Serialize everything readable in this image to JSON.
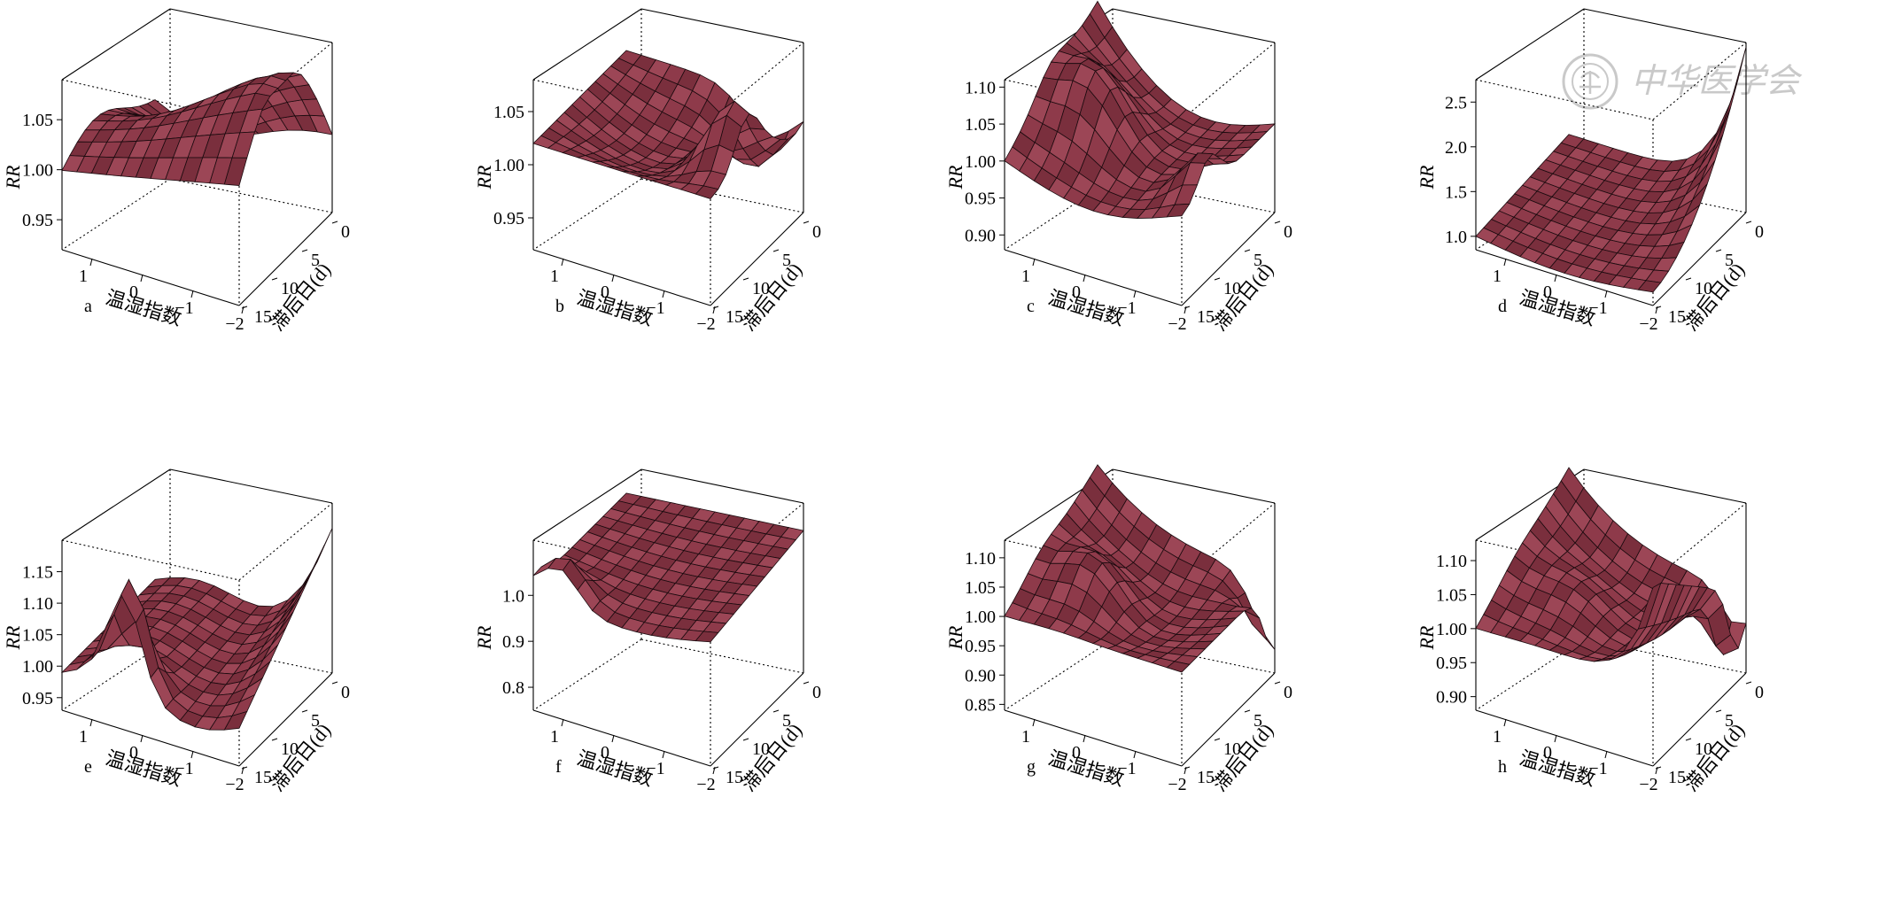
{
  "figure": {
    "watermark": {
      "text": "中华医学会",
      "color": "#c9c9c9"
    },
    "colors": {
      "surface": "#8e3a4a",
      "edge": "#1a0a0e",
      "box": "#000000"
    },
    "x_label": "温湿指数",
    "y_label": "滞后日(d)",
    "z_label": "RR",
    "x_ticks": [
      "1",
      "0",
      "−1",
      "−2"
    ],
    "y_ticks": [
      "0",
      "5",
      "10",
      "15"
    ]
  },
  "chart_data": [
    {
      "type": "surface",
      "label": "a",
      "x_values": [
        1.5,
        -2
      ],
      "lag_range": [
        0,
        15
      ],
      "zlabel": "RR",
      "zlim": [
        0.92,
        1.09
      ],
      "z_ticks": [
        "0.95",
        "1.00",
        "1.05"
      ]
    },
    {
      "type": "surface",
      "label": "b",
      "x_values": [
        1.5,
        -2
      ],
      "lag_range": [
        0,
        15
      ],
      "zlabel": "RR",
      "zlim": [
        0.92,
        1.08
      ],
      "z_ticks": [
        "0.95",
        "1.00",
        "1.05"
      ]
    },
    {
      "type": "surface",
      "label": "c",
      "x_values": [
        1.5,
        -2
      ],
      "lag_range": [
        0,
        15
      ],
      "zlabel": "RR",
      "zlim": [
        0.88,
        1.11
      ],
      "z_ticks": [
        "0.90",
        "0.95",
        "1.00",
        "1.05",
        "1.10"
      ]
    },
    {
      "type": "surface",
      "label": "d",
      "x_values": [
        1.5,
        -2
      ],
      "lag_range": [
        0,
        15
      ],
      "zlabel": "RR",
      "zlim": [
        0.85,
        2.75
      ],
      "z_ticks": [
        "1.0",
        "1.5",
        "2.0",
        "2.5"
      ]
    },
    {
      "type": "surface",
      "label": "e",
      "x_values": [
        1.5,
        -2
      ],
      "lag_range": [
        0,
        15
      ],
      "zlabel": "RR",
      "zlim": [
        0.93,
        1.2
      ],
      "z_ticks": [
        "0.95",
        "1.00",
        "1.05",
        "1.10",
        "1.15"
      ]
    },
    {
      "type": "surface",
      "label": "f",
      "x_values": [
        1.5,
        -2
      ],
      "lag_range": [
        0,
        15
      ],
      "zlabel": "RR",
      "zlim": [
        0.75,
        1.12
      ],
      "z_ticks": [
        "0.8",
        "0.9",
        "1.0"
      ]
    },
    {
      "type": "surface",
      "label": "g",
      "x_values": [
        1.5,
        -2
      ],
      "lag_range": [
        0,
        15
      ],
      "zlabel": "RR",
      "zlim": [
        0.84,
        1.13
      ],
      "z_ticks": [
        "0.85",
        "0.90",
        "0.95",
        "1.00",
        "1.05",
        "1.10"
      ]
    },
    {
      "type": "surface",
      "label": "h",
      "x_values": [
        1.5,
        -2
      ],
      "lag_range": [
        0,
        15
      ],
      "zlabel": "RR",
      "zlim": [
        0.88,
        1.13
      ],
      "z_ticks": [
        "0.90",
        "0.95",
        "1.00",
        "1.05",
        "1.10"
      ]
    }
  ]
}
